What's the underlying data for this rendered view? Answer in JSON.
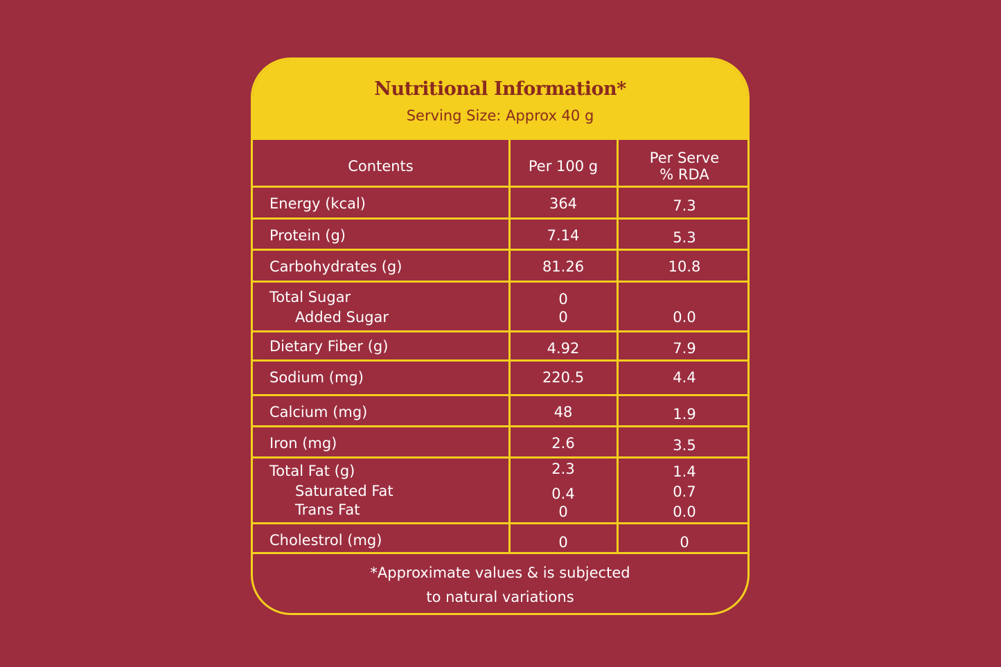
{
  "header": {
    "title": "Nutritional Information*",
    "serving": "Serving Size: Approx 40 g"
  },
  "columns": {
    "contents": "Contents",
    "per100": "Per 100 g",
    "perServe1": "Per Serve",
    "perServe2": "% RDA"
  },
  "rows": {
    "energy": {
      "label": "Energy (kcal)",
      "per100": "364",
      "rda": "7.3"
    },
    "protein": {
      "label": "Protein (g)",
      "per100": "7.14",
      "rda": "5.3"
    },
    "carbs": {
      "label": "Carbohydrates (g)",
      "per100": "81.26",
      "rda": "10.8"
    },
    "sugar": {
      "label": "Total Sugar",
      "per100": "0",
      "added_label": "Added Sugar",
      "added_per100": "0",
      "added_rda": "0.0"
    },
    "fiber": {
      "label": "Dietary Fiber (g)",
      "per100": "4.92",
      "rda": "7.9"
    },
    "sodium": {
      "label": "Sodium (mg)",
      "per100": "220.5",
      "rda": "4.4"
    },
    "calcium": {
      "label": "Calcium (mg)",
      "per100": "48",
      "rda": "1.9"
    },
    "iron": {
      "label": "Iron (mg)",
      "per100": "2.6",
      "rda": "3.5"
    },
    "fat": {
      "label": "Total Fat (g)",
      "per100": "2.3",
      "rda": "1.4",
      "sat_label": "Saturated Fat",
      "sat_per100": "0.4",
      "sat_rda": "0.7",
      "trans_label": "Trans Fat",
      "trans_per100": "0",
      "trans_rda": "0.0"
    },
    "cholesterol": {
      "label": "Cholestrol (mg)",
      "per100": "0",
      "rda": "0"
    }
  },
  "footer": {
    "line1": "*Approximate values & is subjected",
    "line2": "to natural variations"
  },
  "colors": {
    "background": "#9b2d3f",
    "accent": "#f4cf1e",
    "title": "#8a2a1e"
  }
}
